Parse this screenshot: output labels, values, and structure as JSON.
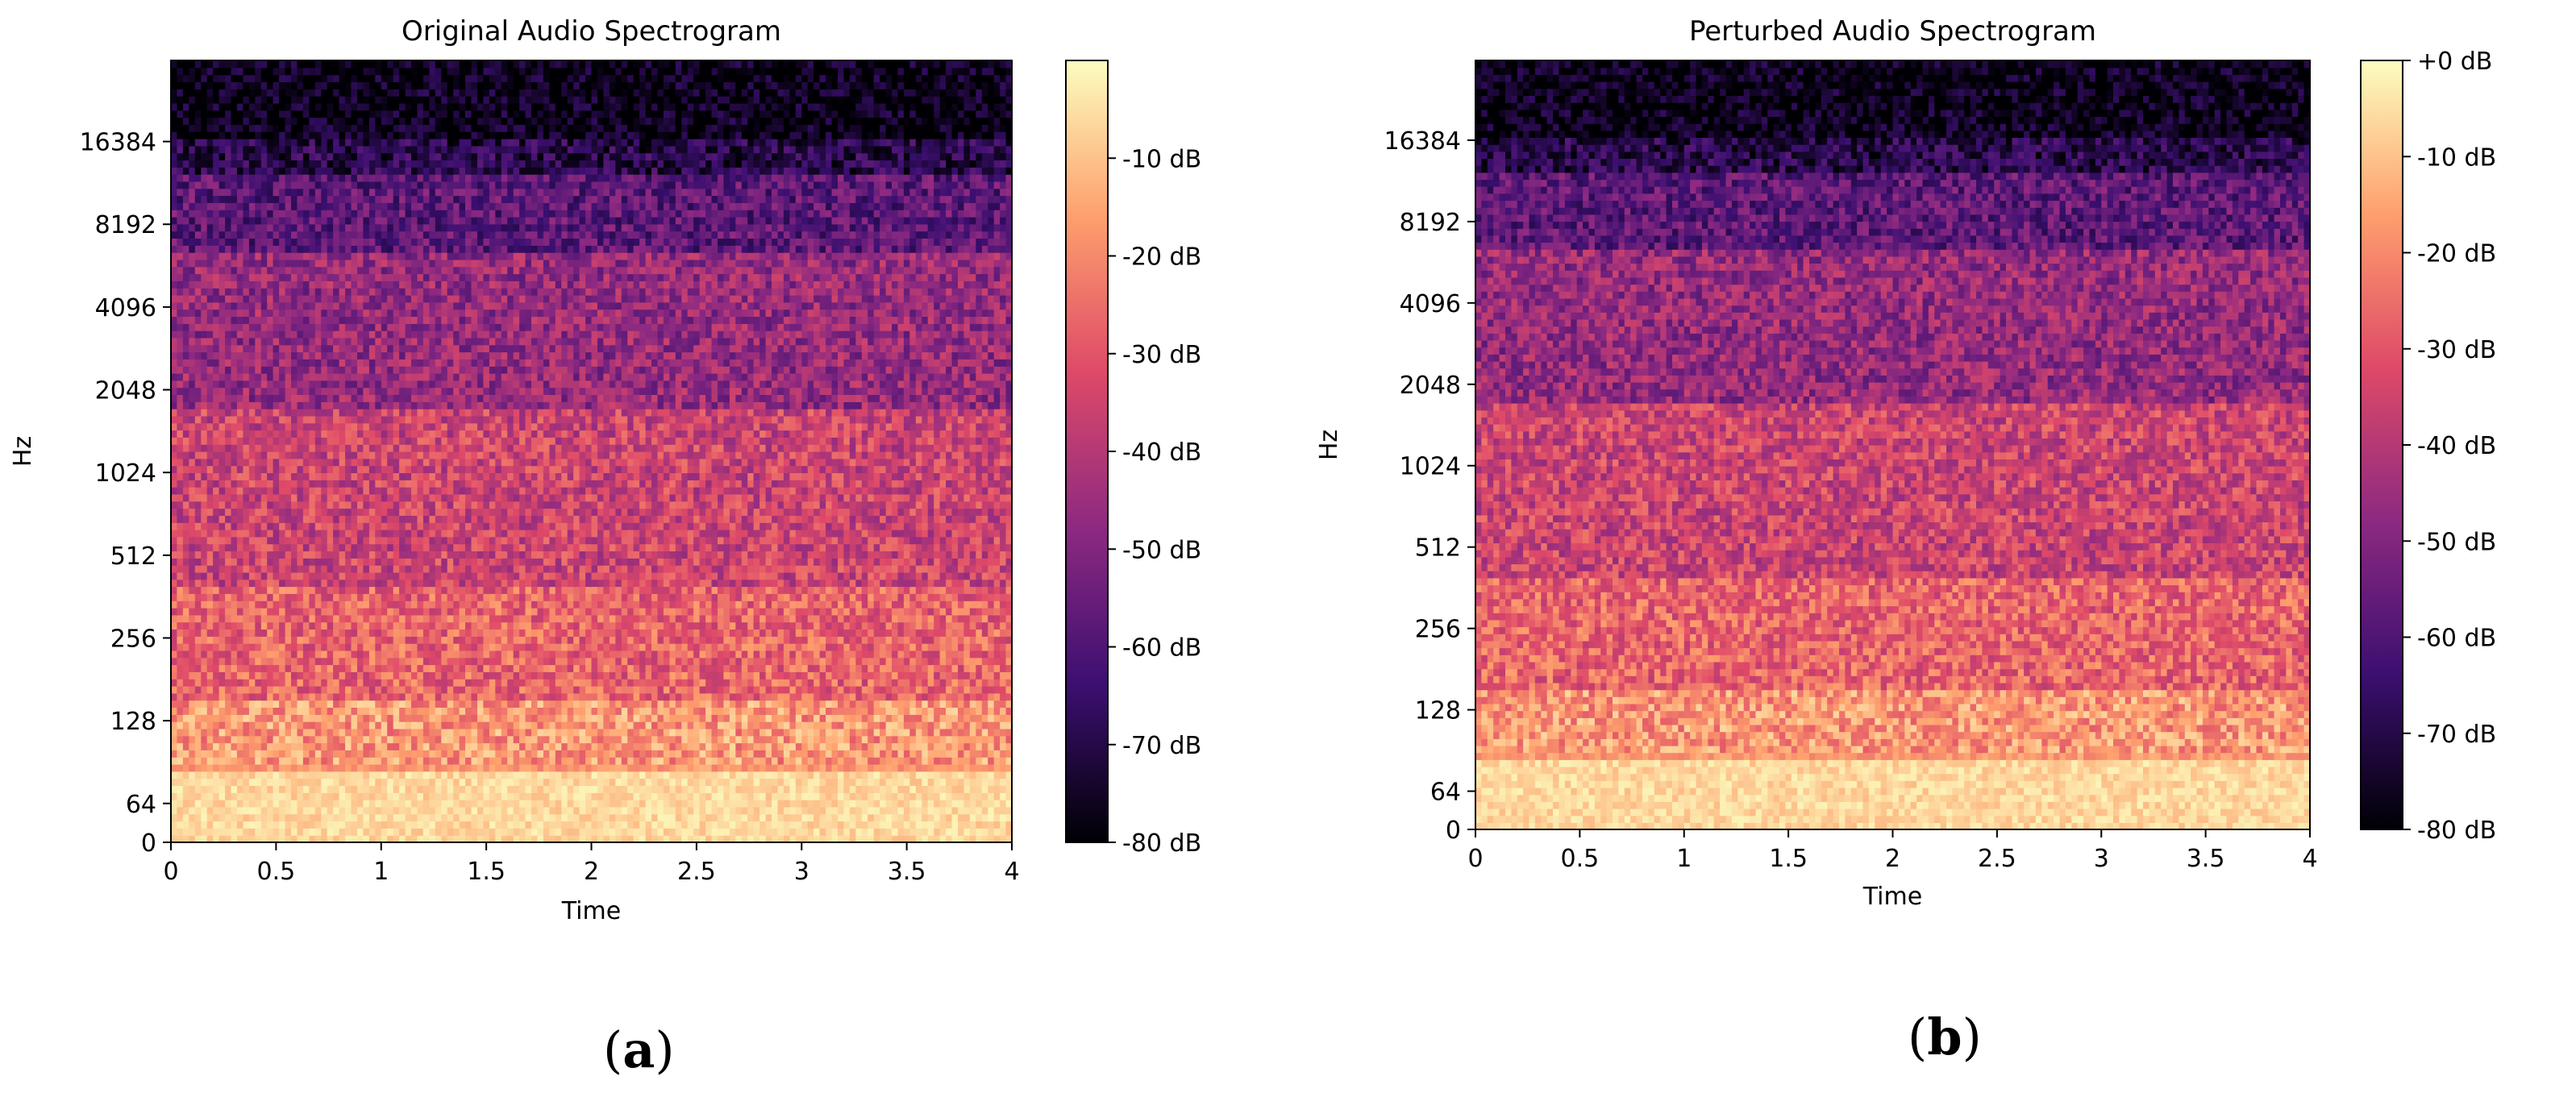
{
  "chart_data": [
    {
      "type": "heatmap",
      "panel_label": "a",
      "title": "Original Audio Spectrogram",
      "xlabel": "Time",
      "ylabel": "Hz",
      "xlim": [
        0,
        4
      ],
      "x_ticks": [
        "0",
        "0.5",
        "1",
        "1.5",
        "2",
        "2.5",
        "3",
        "3.5",
        "4"
      ],
      "y_scale": "log2",
      "y_ticks": [
        "0",
        "64",
        "128",
        "256",
        "512",
        "1024",
        "2048",
        "4096",
        "8192",
        "16384"
      ],
      "colorbar": {
        "label_range_db": [
          -80,
          0
        ],
        "tick_labels": [
          "-10 dB",
          "-20 dB",
          "-30 dB",
          "-40 dB",
          "-50 dB",
          "-60 dB",
          "-70 dB",
          "-80 dB"
        ],
        "colormap": "magma"
      },
      "colors": [
        "#000004",
        "#3b0f70",
        "#8c2981",
        "#de4968",
        "#fe9f6d",
        "#fcfdbf"
      ],
      "seed": 11
    },
    {
      "type": "heatmap",
      "panel_label": "b",
      "title": "Perturbed Audio Spectrogram",
      "xlabel": "Time",
      "ylabel": "Hz",
      "xlim": [
        0,
        4
      ],
      "x_ticks": [
        "0",
        "0.5",
        "1",
        "1.5",
        "2",
        "2.5",
        "3",
        "3.5",
        "4"
      ],
      "y_scale": "log2",
      "y_ticks": [
        "0",
        "64",
        "128",
        "256",
        "512",
        "1024",
        "2048",
        "4096",
        "8192",
        "16384"
      ],
      "colorbar": {
        "label_range_db": [
          -80,
          0
        ],
        "tick_labels": [
          "+0 dB",
          "-10 dB",
          "-20 dB",
          "-30 dB",
          "-40 dB",
          "-50 dB",
          "-60 dB",
          "-70 dB",
          "-80 dB"
        ],
        "colormap": "magma"
      },
      "colors": [
        "#000004",
        "#3b0f70",
        "#8c2981",
        "#de4968",
        "#fe9f6d",
        "#fcfdbf"
      ],
      "seed": 23
    }
  ]
}
